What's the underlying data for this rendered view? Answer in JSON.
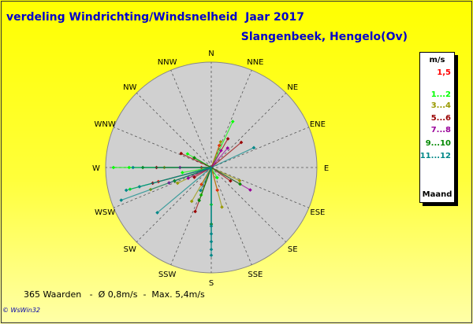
{
  "header": {
    "title": "verdeling Windrichting/Windsnelheid  Jaar 2017",
    "station": "Slangenbeek, Hengelo(Ov)"
  },
  "footer": {
    "summary": "365 Waarden   -  Ø 0,8m/s  -  Max. 5,4m/s",
    "credit": "© WsWin32"
  },
  "legend": {
    "unit": "m/s",
    "footer": "Maand",
    "items": [
      {
        "label": "1,5",
        "color": "#ff0000"
      },
      {
        "label": "1...2",
        "color": "#00ff00"
      },
      {
        "label": "3...4",
        "color": "#999900"
      },
      {
        "label": "5...6",
        "color": "#990000"
      },
      {
        "label": "7...8",
        "color": "#990099"
      },
      {
        "label": "9...10",
        "color": "#008800"
      },
      {
        "label": "11...12",
        "color": "#008888"
      }
    ]
  },
  "chart_data": {
    "type": "scatter",
    "subtype": "polar-wind-rose",
    "directions": [
      "N",
      "NNE",
      "NE",
      "ENE",
      "E",
      "ESE",
      "SE",
      "SSE",
      "S",
      "SSW",
      "SW",
      "WSW",
      "W",
      "WNW",
      "NW",
      "NNW"
    ],
    "direction_degrees": [
      0,
      22.5,
      45,
      67.5,
      90,
      112.5,
      135,
      157.5,
      180,
      202.5,
      225,
      247.5,
      270,
      292.5,
      315,
      337.5
    ],
    "radial_unit": "m/s",
    "radial_max": 5.4,
    "count": 365,
    "mean_speed": 0.8,
    "max_speed": 5.4,
    "series": [
      {
        "name": "1,5",
        "color": "#ff0000",
        "points": [
          {
            "dir": 20,
            "speed": 1.2
          },
          {
            "dir": 255,
            "speed": 2.8
          },
          {
            "dir": 165,
            "speed": 1.2
          },
          {
            "dir": 210,
            "speed": 1.0
          },
          {
            "dir": 270,
            "speed": 0.5
          }
        ]
      },
      {
        "name": "1...2",
        "color": "#00ff00",
        "points": [
          {
            "dir": 270,
            "speed": 5.0
          },
          {
            "dir": 270,
            "speed": 4.2
          },
          {
            "dir": 25,
            "speed": 2.6
          },
          {
            "dir": 255,
            "speed": 4.3
          },
          {
            "dir": 200,
            "speed": 1.5
          },
          {
            "dir": 180,
            "speed": 1.9
          },
          {
            "dir": 300,
            "speed": 1.4
          },
          {
            "dir": 150,
            "speed": 0.6
          },
          {
            "dir": 260,
            "speed": 1.5
          }
        ]
      },
      {
        "name": "3...4",
        "color": "#999900",
        "points": [
          {
            "dir": 250,
            "speed": 3.3
          },
          {
            "dir": 270,
            "speed": 2.4
          },
          {
            "dir": 20,
            "speed": 1.4
          },
          {
            "dir": 165,
            "speed": 2.1
          },
          {
            "dir": 115,
            "speed": 1.6
          },
          {
            "dir": 210,
            "speed": 2.0
          },
          {
            "dir": 245,
            "speed": 1.9
          }
        ]
      },
      {
        "name": "5...6",
        "color": "#990000",
        "points": [
          {
            "dir": 295,
            "speed": 1.7
          },
          {
            "dir": 50,
            "speed": 2.0
          },
          {
            "dir": 30,
            "speed": 1.7
          },
          {
            "dir": 270,
            "speed": 2.8
          },
          {
            "dir": 125,
            "speed": 1.2
          },
          {
            "dir": 255,
            "speed": 3.1
          },
          {
            "dir": 200,
            "speed": 2.4
          },
          {
            "dir": 240,
            "speed": 1.0
          }
        ]
      },
      {
        "name": "7...8",
        "color": "#990099",
        "points": [
          {
            "dir": 120,
            "speed": 2.3
          },
          {
            "dir": 40,
            "speed": 1.3
          },
          {
            "dir": 270,
            "speed": 1.6
          },
          {
            "dir": 30,
            "speed": 1.0
          },
          {
            "dir": 245,
            "speed": 1.3
          },
          {
            "dir": 250,
            "speed": 2.3
          }
        ]
      },
      {
        "name": "9...10",
        "color": "#008800",
        "points": [
          {
            "dir": 180,
            "speed": 2.9
          },
          {
            "dir": 200,
            "speed": 1.8
          },
          {
            "dir": 270,
            "speed": 3.5
          },
          {
            "dir": 250,
            "speed": 2.0
          },
          {
            "dir": 120,
            "speed": 1.7
          },
          {
            "dir": 300,
            "speed": 1.0
          }
        ]
      },
      {
        "name": "11...12",
        "color": "#008888",
        "points": [
          {
            "dir": 180,
            "speed": 4.5
          },
          {
            "dir": 180,
            "speed": 4.2
          },
          {
            "dir": 180,
            "speed": 3.8
          },
          {
            "dir": 180,
            "speed": 3.4
          },
          {
            "dir": 180,
            "speed": 3.0
          },
          {
            "dir": 255,
            "speed": 4.5
          },
          {
            "dir": 255,
            "speed": 3.8
          },
          {
            "dir": 230,
            "speed": 3.6
          },
          {
            "dir": 65,
            "speed": 2.4
          },
          {
            "dir": 270,
            "speed": 4.0
          },
          {
            "dir": 250,
            "speed": 4.9
          },
          {
            "dir": 205,
            "speed": 1.3
          }
        ]
      }
    ]
  }
}
